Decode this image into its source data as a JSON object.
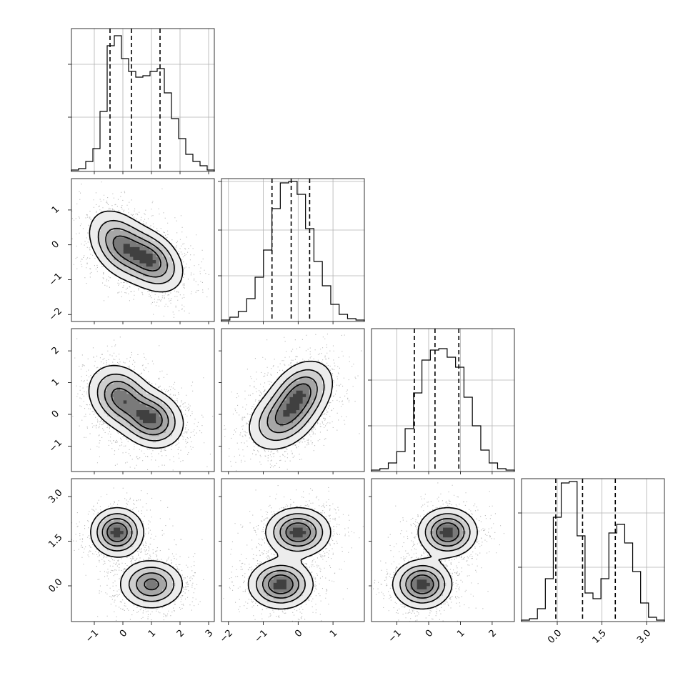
{
  "chart_data": {
    "type": "corner",
    "title": "",
    "n_params": 4,
    "param_labels": [
      "",
      "",
      "",
      ""
    ],
    "axis_ranges": [
      [
        -1.8,
        3.2
      ],
      [
        -2.2,
        1.9
      ],
      [
        -1.8,
        2.7
      ],
      [
        -1.2,
        3.6
      ]
    ],
    "tick_values": [
      [
        -1,
        0,
        1,
        2,
        3
      ],
      [
        -2,
        -1,
        0,
        1
      ],
      [
        -1,
        0,
        1,
        2
      ],
      [
        0.0,
        1.5,
        3.0
      ]
    ],
    "tick_labels": [
      [
        "−1",
        "0",
        "1",
        "2",
        "3"
      ],
      [
        "−2",
        "−1",
        "0",
        "1"
      ],
      [
        "−1",
        "0",
        "1",
        "2"
      ],
      [
        "0.0",
        "1.5",
        "3.0"
      ]
    ],
    "quantiles": [
      [
        -0.45,
        0.3,
        1.3
      ],
      [
        -0.75,
        -0.2,
        0.33
      ],
      [
        -0.45,
        0.2,
        0.95
      ],
      [
        -0.05,
        0.85,
        1.95
      ]
    ],
    "histograms": [
      {
        "counts": [
          1,
          2,
          7,
          16,
          42,
          88,
          95,
          79,
          70,
          66,
          67,
          70,
          72,
          55,
          37,
          23,
          12,
          7,
          4,
          1
        ],
        "max": 100
      },
      {
        "counts": [
          1,
          3,
          7,
          16,
          31,
          50,
          79,
          97,
          98,
          89,
          65,
          42,
          25,
          12,
          5,
          2,
          1
        ],
        "max": 100
      },
      {
        "counts": [
          1,
          2,
          6,
          14,
          30,
          55,
          78,
          85,
          86,
          80,
          73,
          52,
          32,
          15,
          6,
          2,
          1
        ],
        "max": 100
      },
      {
        "counts": [
          1,
          2,
          9,
          30,
          73,
          97,
          98,
          60,
          20,
          16,
          30,
          62,
          68,
          55,
          35,
          13,
          3,
          1
        ],
        "max": 100
      }
    ],
    "hist_grid_fractions": [
      [
        0.75,
        0.38
      ],
      [
        0.98,
        0.64,
        0.32
      ],
      [
        0.64,
        0.32
      ],
      [
        0.76,
        0.38
      ]
    ],
    "mixtures": [
      [
        {
          "w": 0.5,
          "mean": [
            -0.1,
            0.0
          ],
          "sd": [
            0.55,
            0.5
          ],
          "rho": -0.35
        },
        {
          "w": 0.5,
          "mean": [
            1.0,
            -0.45
          ],
          "sd": [
            0.55,
            0.45
          ],
          "rho": -0.35
        }
      ],
      [
        {
          "w": 0.5,
          "mean": [
            -0.1,
            0.55
          ],
          "sd": [
            0.55,
            0.5
          ],
          "rho": -0.2
        },
        {
          "w": 0.5,
          "mean": [
            1.0,
            -0.15
          ],
          "sd": [
            0.55,
            0.45
          ],
          "rho": -0.15
        }
      ],
      [
        {
          "w": 0.5,
          "mean": [
            -0.45,
            -0.15
          ],
          "sd": [
            0.5,
            0.5
          ],
          "rho": 0.3
        },
        {
          "w": 0.5,
          "mean": [
            0.1,
            0.7
          ],
          "sd": [
            0.45,
            0.5
          ],
          "rho": 0.3
        }
      ],
      [
        {
          "w": 0.5,
          "mean": [
            -0.2,
            1.8
          ],
          "sd": [
            0.45,
            0.4
          ],
          "rho": 0.0
        },
        {
          "w": 0.5,
          "mean": [
            1.0,
            0.05
          ],
          "sd": [
            0.55,
            0.4
          ],
          "rho": 0.0
        }
      ],
      [
        {
          "w": 0.5,
          "mean": [
            -0.5,
            0.05
          ],
          "sd": [
            0.45,
            0.4
          ],
          "rho": 0.0
        },
        {
          "w": 0.5,
          "mean": [
            0.0,
            1.8
          ],
          "sd": [
            0.45,
            0.4
          ],
          "rho": 0.0
        }
      ],
      [
        {
          "w": 0.5,
          "mean": [
            -0.2,
            0.05
          ],
          "sd": [
            0.45,
            0.4
          ],
          "rho": 0.0
        },
        {
          "w": 0.5,
          "mean": [
            0.6,
            1.8
          ],
          "sd": [
            0.45,
            0.4
          ],
          "rho": 0.0
        }
      ]
    ],
    "pair_order": [
      [
        1,
        0
      ],
      [
        2,
        0
      ],
      [
        2,
        1
      ],
      [
        3,
        0
      ],
      [
        3,
        1
      ],
      [
        3,
        2
      ]
    ],
    "grid": true,
    "legend": "none"
  }
}
